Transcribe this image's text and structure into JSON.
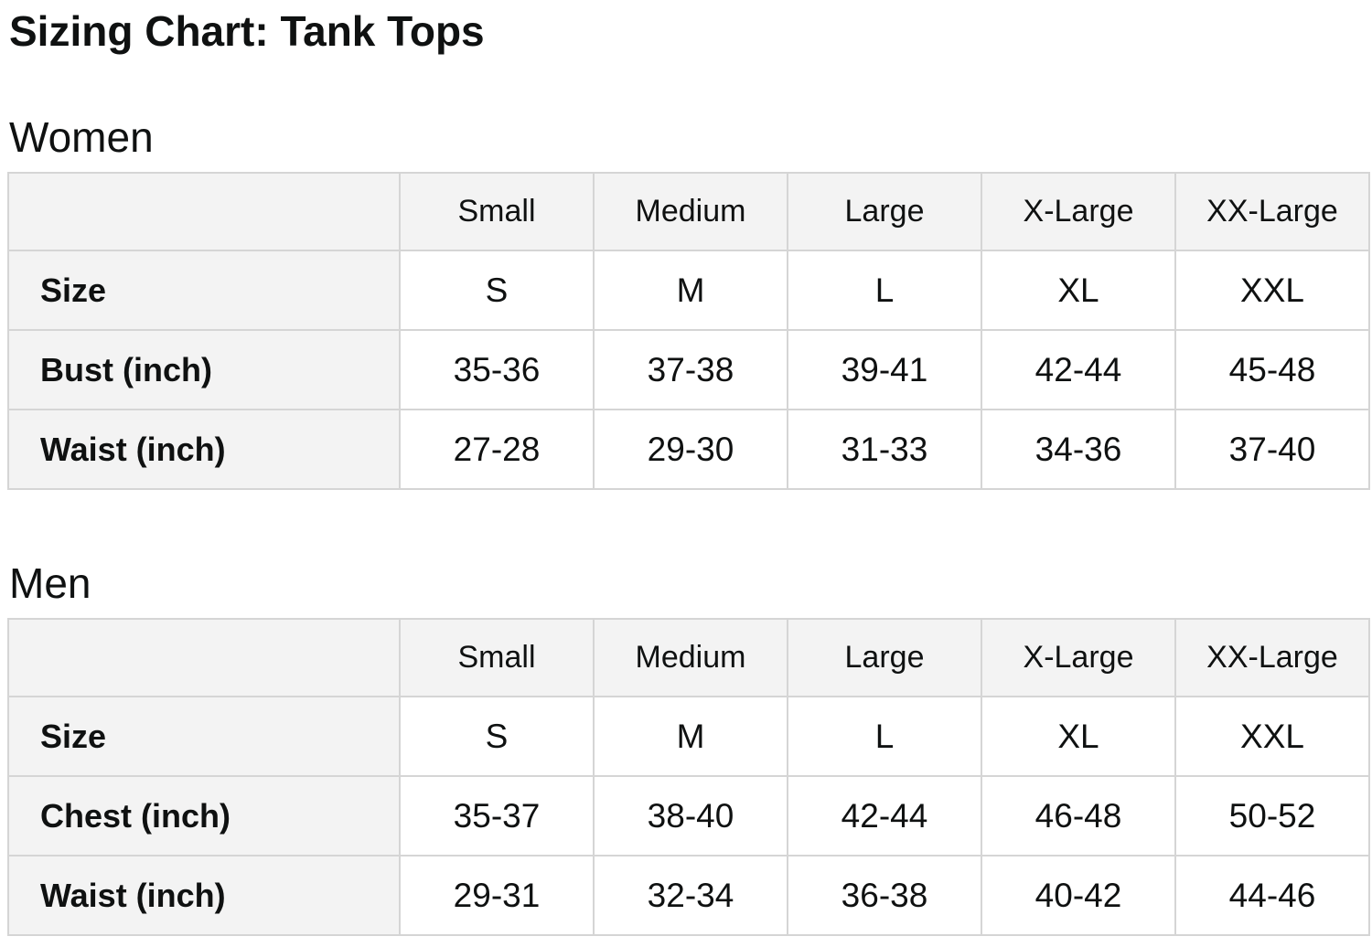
{
  "page": {
    "title": "Sizing Chart: Tank Tops"
  },
  "colors": {
    "text": "#0f1111",
    "header_bg": "#f3f3f3",
    "border": "#d5d5d5",
    "cell_bg": "#ffffff"
  },
  "sections": [
    {
      "heading": "Women",
      "table": {
        "column_headers": [
          "",
          "Small",
          "Medium",
          "Large",
          "X-Large",
          "XX-Large"
        ],
        "rows": [
          {
            "label": "Size",
            "values": [
              "S",
              "M",
              "L",
              "XL",
              "XXL"
            ]
          },
          {
            "label": "Bust (inch)",
            "values": [
              "35-36",
              "37-38",
              "39-41",
              "42-44",
              "45-48"
            ]
          },
          {
            "label": "Waist (inch)",
            "values": [
              "27-28",
              "29-30",
              "31-33",
              "34-36",
              "37-40"
            ]
          }
        ]
      }
    },
    {
      "heading": "Men",
      "table": {
        "column_headers": [
          "",
          "Small",
          "Medium",
          "Large",
          "X-Large",
          "XX-Large"
        ],
        "rows": [
          {
            "label": "Size",
            "values": [
              "S",
              "M",
              "L",
              "XL",
              "XXL"
            ]
          },
          {
            "label": "Chest (inch)",
            "values": [
              "35-37",
              "38-40",
              "42-44",
              "46-48",
              "50-52"
            ]
          },
          {
            "label": "Waist (inch)",
            "values": [
              "29-31",
              "32-34",
              "36-38",
              "40-42",
              "44-46"
            ]
          }
        ]
      }
    }
  ]
}
